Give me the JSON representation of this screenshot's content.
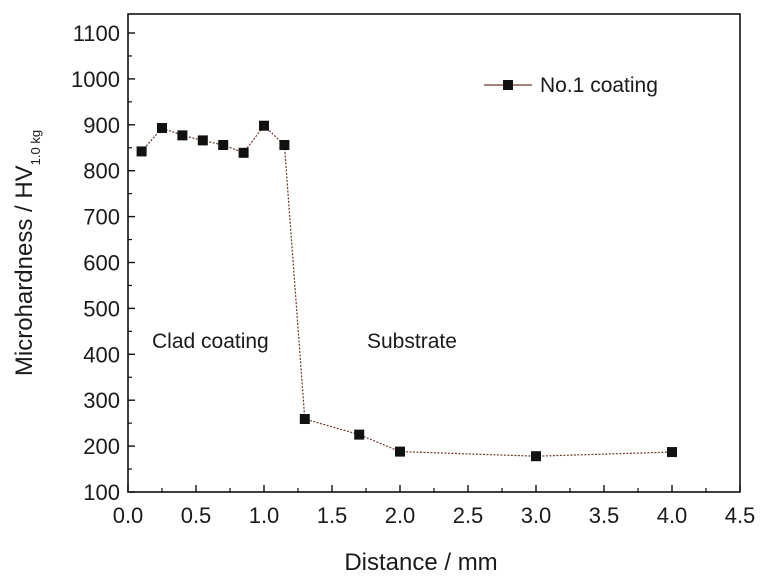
{
  "chart_data": {
    "type": "line",
    "xlabel": "Distance / mm",
    "ylabel": "Microhardness / HV",
    "ylabel_subscript": "1.0 kg",
    "xlim": [
      0.0,
      4.5
    ],
    "ylim": [
      100,
      1150
    ],
    "xticks": [
      "0.0",
      "0.5",
      "1.0",
      "1.5",
      "2.0",
      "2.5",
      "3.0",
      "3.5",
      "4.0",
      "4.5"
    ],
    "yticks": [
      "100",
      "200",
      "300",
      "400",
      "500",
      "600",
      "700",
      "800",
      "900",
      "1000",
      "1100"
    ],
    "grid": false,
    "legend_position": "top-right",
    "series": [
      {
        "name": "No.1 coating",
        "marker": "square",
        "line_color": "#6b3b2a",
        "marker_color": "#111111",
        "x": [
          0.1,
          0.25,
          0.4,
          0.55,
          0.7,
          0.85,
          1.0,
          1.15,
          1.3,
          1.7,
          2.0,
          3.0,
          4.0
        ],
        "y": [
          842,
          893,
          877,
          866,
          856,
          839,
          898,
          856,
          259,
          225,
          188,
          178,
          187
        ]
      }
    ],
    "annotations": [
      "Clad coating",
      "Substrate"
    ]
  }
}
